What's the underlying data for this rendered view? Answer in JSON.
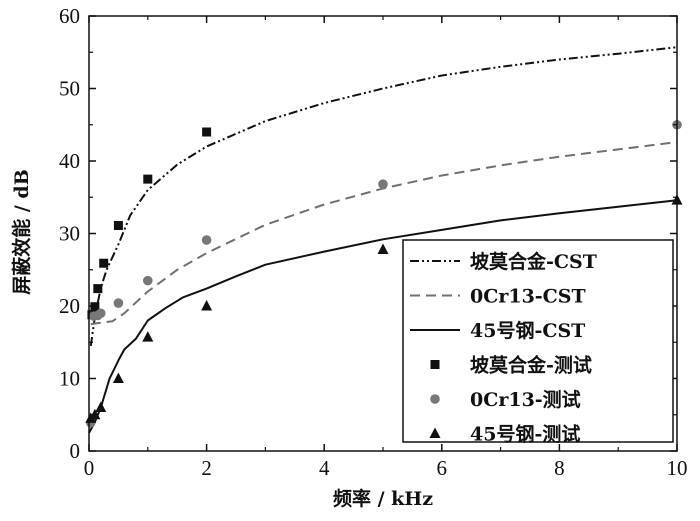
{
  "chart_data": {
    "type": "line",
    "xlabel": "频率 / kHz",
    "ylabel": "屏蔽效能 / dB",
    "xlim": [
      0,
      10
    ],
    "ylim": [
      0,
      60
    ],
    "xticks": [
      0,
      2,
      4,
      6,
      8,
      10
    ],
    "yticks": [
      0,
      10,
      20,
      30,
      40,
      50,
      60
    ],
    "grid": false,
    "legend_position": "bottom-right",
    "series": [
      {
        "name": "坡莫合金-CST",
        "kind": "line",
        "style": "dash-dot-dot",
        "color": "#111111",
        "x": [
          0.03,
          0.1,
          0.2,
          0.3,
          0.5,
          0.7,
          1.0,
          1.5,
          2.0,
          3.0,
          4.0,
          5.0,
          6.0,
          7.0,
          8.0,
          9.0,
          10.0
        ],
        "y": [
          14.5,
          18.5,
          22.5,
          25.0,
          28.5,
          32.5,
          36.0,
          39.5,
          42.0,
          45.5,
          48.0,
          50.0,
          51.8,
          53.0,
          54.0,
          54.8,
          55.7
        ]
      },
      {
        "name": "0Cr13-CST",
        "kind": "line",
        "style": "dashed",
        "color": "#707070",
        "x": [
          0.03,
          0.2,
          0.4,
          0.6,
          1.0,
          1.5,
          2.0,
          3.0,
          4.0,
          5.0,
          6.0,
          7.0,
          8.0,
          9.0,
          10.0
        ],
        "y": [
          17.5,
          17.7,
          17.9,
          19.0,
          22.0,
          25.0,
          27.3,
          31.2,
          34.0,
          36.2,
          38.0,
          39.4,
          40.6,
          41.6,
          42.6
        ]
      },
      {
        "name": "45号钢-CST",
        "kind": "line",
        "style": "solid",
        "color": "#111111",
        "x": [
          0.0,
          0.1,
          0.2,
          0.35,
          0.5,
          0.6,
          0.8,
          1.0,
          1.3,
          1.6,
          2.0,
          2.5,
          3.0,
          4.0,
          5.0,
          6.0,
          7.0,
          8.0,
          9.0,
          10.0
        ],
        "y": [
          2.5,
          4.0,
          6.0,
          10.0,
          12.5,
          14.0,
          15.5,
          18.0,
          19.7,
          21.2,
          22.4,
          24.1,
          25.7,
          27.5,
          29.2,
          30.5,
          31.8,
          32.8,
          33.7,
          34.6
        ]
      },
      {
        "name": "坡莫合金-测试",
        "kind": "scatter",
        "marker": "square",
        "color": "#111111",
        "x": [
          0.05,
          0.1,
          0.15,
          0.25,
          0.5,
          1.0,
          2.0
        ],
        "y": [
          18.8,
          19.9,
          22.4,
          25.9,
          31.1,
          37.5,
          44.0
        ]
      },
      {
        "name": "0Cr13-测试",
        "kind": "scatter",
        "marker": "circle",
        "color": "#777777",
        "x": [
          0.03,
          0.08,
          0.15,
          0.2,
          0.5,
          1.0,
          2.0,
          5.0,
          10.0
        ],
        "y": [
          3.9,
          18.6,
          18.7,
          19.0,
          20.4,
          23.5,
          29.1,
          36.8,
          45.0
        ]
      },
      {
        "name": "45号钢-测试",
        "kind": "scatter",
        "marker": "triangle",
        "color": "#111111",
        "x": [
          0.03,
          0.1,
          0.2,
          0.5,
          1.0,
          2.0,
          5.0,
          10.0
        ],
        "y": [
          4.5,
          5.0,
          6.0,
          10.0,
          15.7,
          20.0,
          27.8,
          34.6
        ]
      }
    ]
  }
}
